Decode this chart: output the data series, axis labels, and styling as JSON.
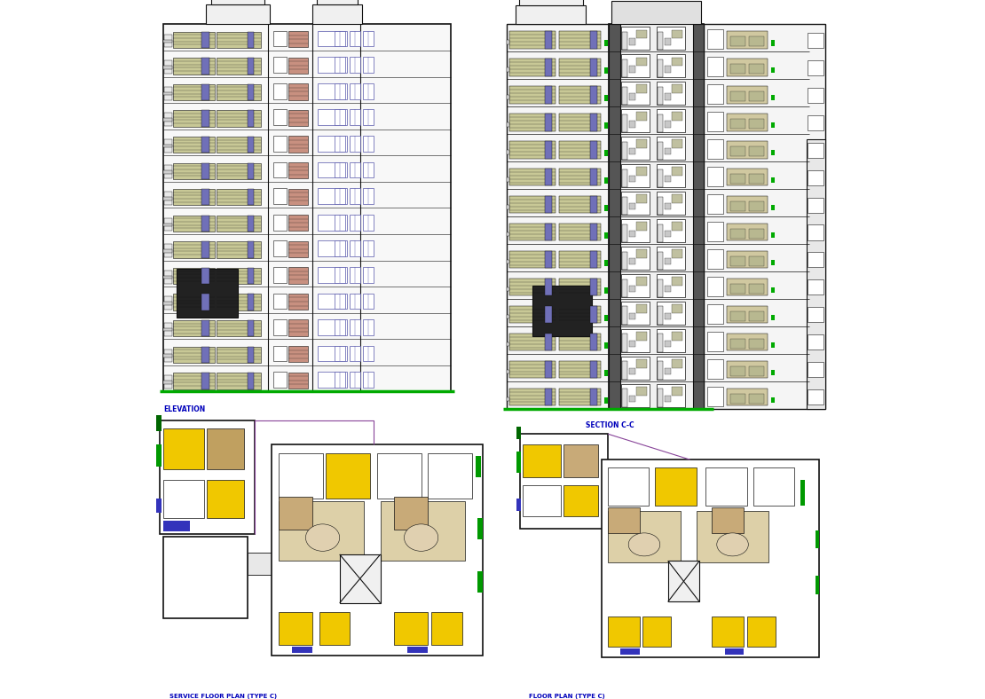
{
  "background_color": "#ffffff",
  "panels": [
    {
      "id": "elevation",
      "label": "ELEVATION",
      "label_color": "#0000bb",
      "label_fontsize": 5.5,
      "bx": 0.025,
      "by": 0.435,
      "bw": 0.415,
      "bh": 0.53
    },
    {
      "id": "section",
      "label": "SECTION C-C",
      "label_color": "#0000bb",
      "label_fontsize": 5.5,
      "bx": 0.52,
      "by": 0.41,
      "bw": 0.46,
      "bh": 0.555
    },
    {
      "id": "service_floor",
      "label": "SERVICE FLOOR PLAN (TYPE C)",
      "label_color": "#0000bb",
      "label_fontsize": 5.0,
      "bx": 0.01,
      "by": 0.015,
      "bw": 0.49,
      "bh": 0.39
    },
    {
      "id": "floor_plan",
      "label": "FLOOR PLAN (TYPE C)",
      "label_color": "#0000bb",
      "label_fontsize": 5.0,
      "bx": 0.53,
      "by": 0.015,
      "bw": 0.455,
      "bh": 0.37
    }
  ],
  "elev": {
    "num_floors": 14,
    "balcony_color": "#c8c896",
    "purple": "#7070b8",
    "pink": "#c89080",
    "green": "#00aa00",
    "black": "#111111",
    "window_border": "#5555aa"
  },
  "sect": {
    "num_floors": 14,
    "balcony_color": "#c8c896",
    "purple": "#7070b8",
    "green": "#00aa00",
    "black": "#111111",
    "grey_dark": "#444444",
    "grey_mid": "#888888",
    "grey_light": "#cccccc",
    "interior_wall": "#222222"
  },
  "plan": {
    "yellow": "#f0c800",
    "tan": "#c8aa78",
    "green": "#009900",
    "dark_green": "#006600",
    "blue": "#3333bb",
    "purple": "#884499",
    "black": "#111111",
    "white": "#ffffff",
    "beige": "#ddd0a8",
    "grey": "#888888",
    "light_grey": "#dddddd"
  }
}
